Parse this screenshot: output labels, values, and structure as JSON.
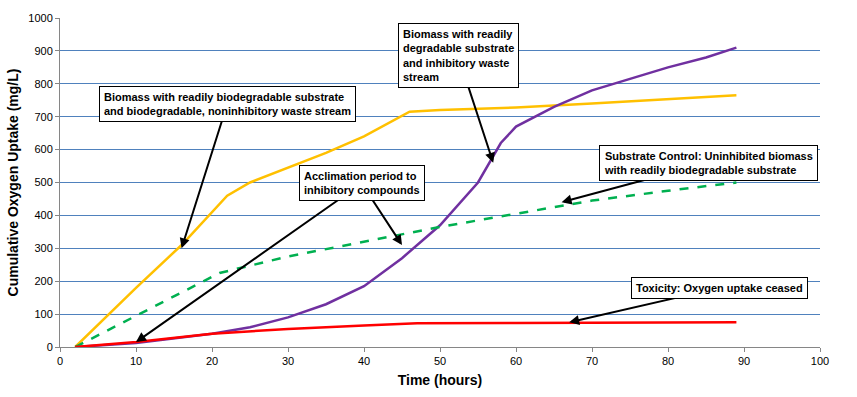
{
  "chart_data": {
    "type": "line",
    "x_label": "Time (hours)",
    "y_label": "Cumulative Oxygen Uptake (mg/L)",
    "xlim": [
      0,
      100
    ],
    "xticks": [
      0,
      10,
      20,
      30,
      40,
      50,
      60,
      70,
      80,
      90,
      100
    ],
    "ylim": [
      0,
      1000
    ],
    "yticks": [
      0,
      100,
      200,
      300,
      400,
      500,
      600,
      700,
      800,
      900,
      1000
    ],
    "grid": true,
    "series": [
      {
        "color": "#FFC000",
        "line_style": "solid",
        "x": [
          2,
          10,
          16,
          22,
          25,
          30,
          35,
          40,
          46,
          50,
          60,
          70,
          80,
          89
        ],
        "values": [
          0,
          180,
          310,
          460,
          500,
          545,
          590,
          640,
          715,
          720,
          728,
          740,
          752,
          765
        ]
      },
      {
        "color": "#7030A0",
        "line_style": "solid",
        "x": [
          2,
          10,
          20,
          25,
          30,
          35,
          40,
          45,
          50,
          55,
          58,
          60,
          65,
          70,
          75,
          80,
          85,
          89
        ],
        "values": [
          0,
          12,
          40,
          60,
          90,
          130,
          185,
          270,
          370,
          500,
          620,
          670,
          730,
          780,
          815,
          850,
          880,
          910
        ]
      },
      {
        "color": "#00B050",
        "line_style": "dash",
        "x": [
          2,
          21,
          30,
          40,
          50,
          60,
          70,
          80,
          89
        ],
        "values": [
          0,
          225,
          275,
          320,
          365,
          405,
          445,
          475,
          500
        ]
      },
      {
        "color": "#FF0000",
        "line_style": "solid",
        "x": [
          2,
          10,
          20,
          30,
          40,
          47,
          60,
          89
        ],
        "values": [
          0,
          15,
          40,
          55,
          65,
          72,
          73,
          75
        ]
      }
    ],
    "annotations": [
      {
        "text": [
          "Biomass with readily biodegradable substrate",
          "and biodegradable, noninhibitory waste stream"
        ],
        "arrows": [
          [
            16,
            300
          ]
        ]
      },
      {
        "text": [
          "Biomass with readily",
          "degradable substrate",
          "and inhibitory waste",
          "stream"
        ],
        "arrows": [
          [
            57,
            560
          ]
        ]
      },
      {
        "text": [
          "Substrate Control: Uninhibited biomass",
          "with readily biodegradable substrate"
        ],
        "arrows": [
          [
            66,
            440
          ]
        ]
      },
      {
        "text": [
          "Acclimation period to",
          "inhibitory compounds"
        ],
        "arrows": [
          [
            10,
            15
          ],
          [
            45,
            310
          ]
        ]
      },
      {
        "text": [
          "Toxicity: Oxygen uptake ceased"
        ],
        "arrows": [
          [
            67,
            75
          ]
        ]
      }
    ]
  }
}
